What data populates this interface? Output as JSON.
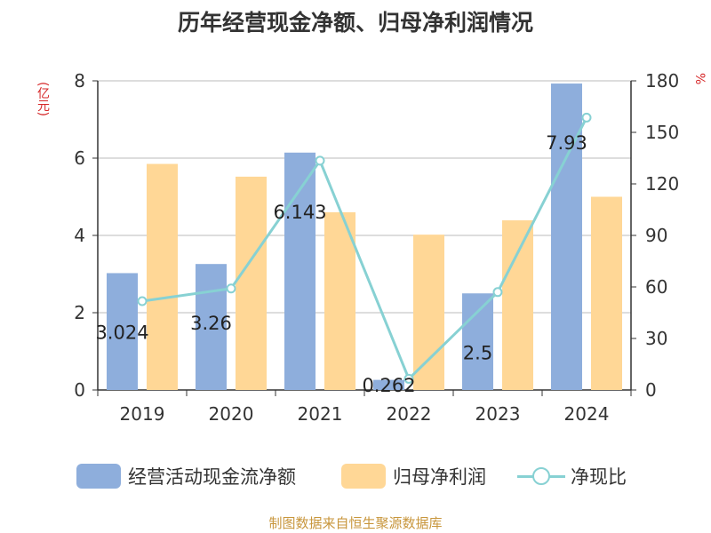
{
  "title": "历年经营现金净额、归母净利润情况",
  "unit_left": "(亿元)",
  "unit_right": "%",
  "source": "制图数据来自恒生聚源数据库",
  "colors": {
    "cash": "#8eaedc",
    "profit": "#ffd796",
    "ratio": "#87d1d3",
    "axis": "#333333",
    "grid": "#bbbbbb"
  },
  "legend": {
    "cash": "经营活动现金流净额",
    "profit": "归母净利润",
    "ratio": "净现比"
  },
  "chart_data": {
    "type": "bar",
    "categories": [
      "2019",
      "2020",
      "2021",
      "2022",
      "2023",
      "2024"
    ],
    "series": [
      {
        "name": "经营活动现金流净额",
        "type": "bar",
        "axis": "left",
        "values": [
          3.024,
          3.26,
          6.143,
          0.262,
          2.5,
          7.93
        ],
        "data_labels": [
          "3.024",
          "3.26",
          "6.143",
          "0.262",
          "2.5",
          "7.93"
        ]
      },
      {
        "name": "归母净利润",
        "type": "bar",
        "axis": "left",
        "values": [
          5.85,
          5.52,
          4.6,
          4.02,
          4.39,
          5.0
        ]
      },
      {
        "name": "净现比",
        "type": "line",
        "axis": "right",
        "values": [
          51.7,
          59.1,
          133.5,
          6.5,
          57.0,
          158.6
        ]
      }
    ],
    "y_left": {
      "min": 0,
      "max": 8,
      "ticks": [
        "0",
        "2",
        "4",
        "6",
        "8"
      ]
    },
    "y_right": {
      "min": 0,
      "max": 180,
      "ticks": [
        "0",
        "30",
        "60",
        "90",
        "120",
        "150",
        "180"
      ]
    },
    "grid": true,
    "legend_position": "bottom"
  }
}
